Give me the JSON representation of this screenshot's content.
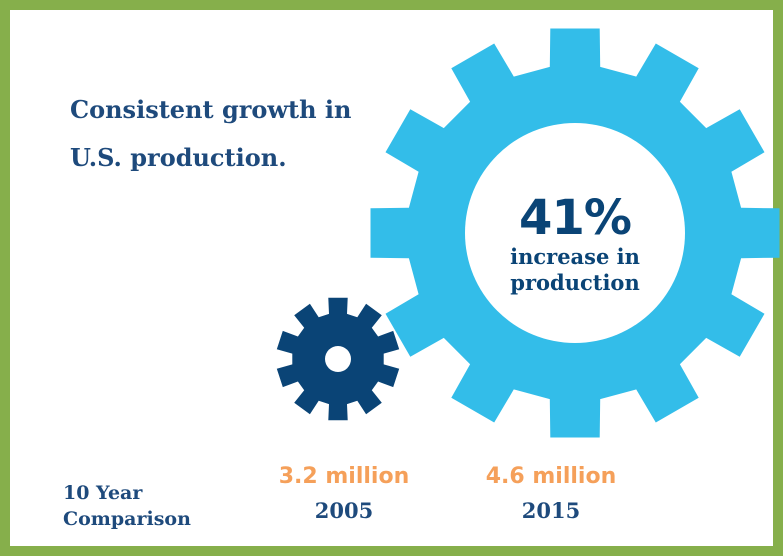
{
  "headline": [
    "Consistent growth in",
    "U.S. production."
  ],
  "large_gear": {
    "icon": "large-gear-icon",
    "percent": "41%",
    "caption": [
      "increase in",
      "production"
    ]
  },
  "small_gear": {
    "icon": "small-gear-icon"
  },
  "comparison_label": [
    "10 Year",
    "Comparison"
  ],
  "stats": [
    {
      "value": "3.2 million",
      "year": "2005"
    },
    {
      "value": "4.6 million",
      "year": "2015"
    }
  ],
  "colors": {
    "border": "#86af4b",
    "headline": "#1e4a7c",
    "large_gear": "#33bde9",
    "small_gear": "#0a4476",
    "stat_value": "#f5a05a",
    "stat_year": "#1e4a7c"
  }
}
